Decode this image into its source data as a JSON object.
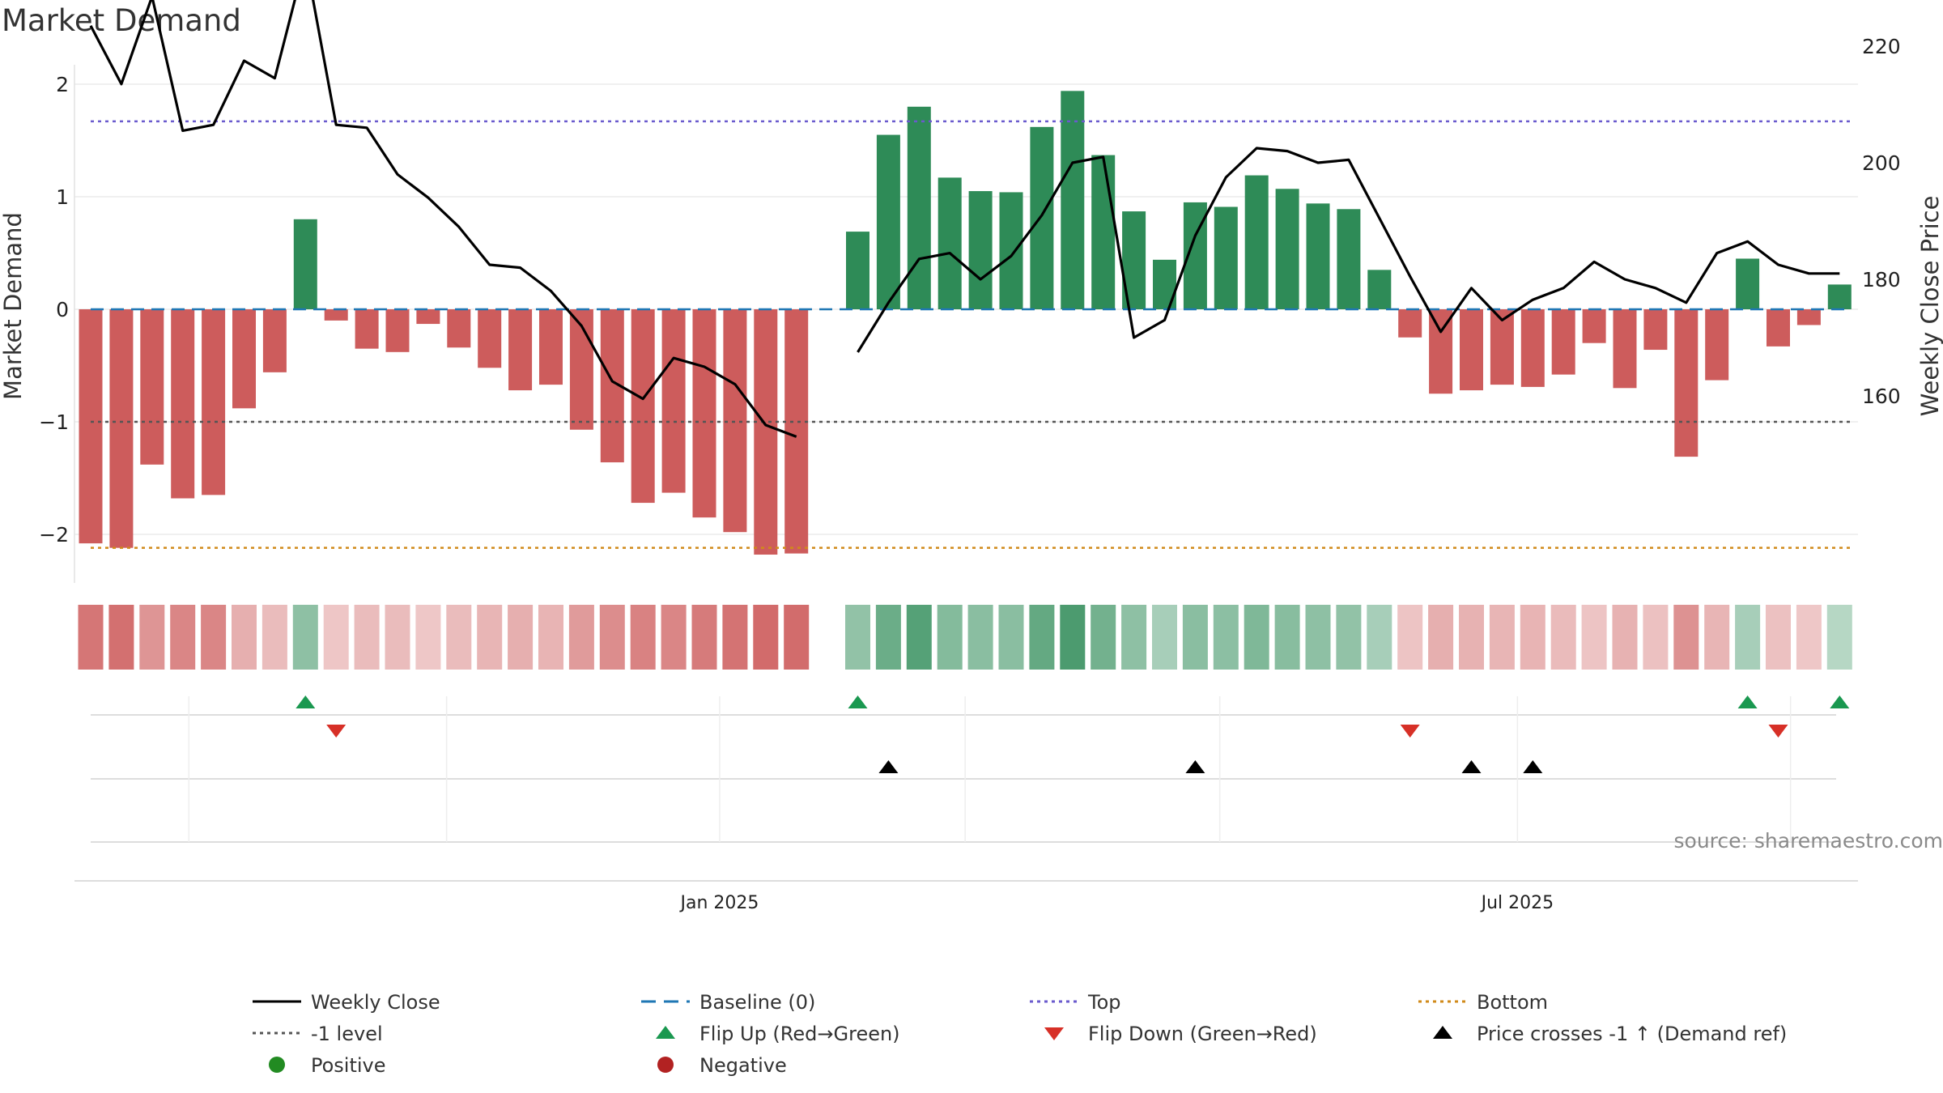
{
  "title": "Market Demand",
  "source": "source: sharemaestro.com",
  "colors": {
    "positive_bar": "#2e8b57",
    "negative_bar": "#cd5c5c",
    "price_line": "#000000",
    "baseline": "#1f77b4",
    "top": "#6a5acd",
    "bottom": "#d08a1a",
    "minus1": "#555555",
    "flip_up": "#1a9850",
    "flip_down": "#d73027",
    "cross": "#000000"
  },
  "chart_data": {
    "type": "bar",
    "ylabel_left": "Market Demand",
    "ylabel_right": "Weekly Close Price",
    "ylim_left": [
      -2.4,
      2.0
    ],
    "ylim_right": [
      152,
      232
    ],
    "left_ticks": [
      2,
      1,
      0,
      -1,
      -2
    ],
    "left_tick_labels": [
      "2",
      "1",
      "0",
      "−1",
      "−2"
    ],
    "right_ticks": [
      220,
      200,
      180,
      160
    ],
    "x_ticks": [
      {
        "label": "Jan 2025",
        "week": 20.5
      },
      {
        "label": "Jul 2025",
        "week": 46.5
      }
    ],
    "reference_lines": {
      "top": 1.67,
      "bottom": -2.12,
      "minus1": -1.0,
      "baseline": 0
    },
    "demand": [
      -2.08,
      -2.12,
      -1.38,
      -1.68,
      -1.65,
      -0.88,
      -0.56,
      0.8,
      -0.1,
      -0.35,
      -0.38,
      -0.13,
      -0.34,
      -0.52,
      -0.72,
      -0.67,
      -1.07,
      -1.36,
      -1.72,
      -1.63,
      -1.85,
      -1.98,
      -2.18,
      -2.17,
      null,
      0.69,
      1.55,
      1.8,
      1.17,
      1.05,
      1.04,
      1.62,
      1.94,
      1.37,
      0.87,
      0.44,
      0.95,
      0.91,
      1.19,
      1.07,
      0.94,
      0.89,
      0.35,
      -0.25,
      -0.75,
      -0.72,
      -0.67,
      -0.69,
      -0.58,
      -0.3,
      -0.7,
      -0.36,
      -1.31,
      -0.63,
      0.45,
      -0.33,
      -0.14,
      0.22
    ],
    "strength": [
      0.85,
      0.9,
      0.6,
      0.72,
      0.72,
      0.38,
      0.28,
      0.45,
      0.2,
      0.28,
      0.28,
      0.18,
      0.28,
      0.33,
      0.38,
      0.35,
      0.55,
      0.66,
      0.76,
      0.72,
      0.82,
      0.88,
      0.95,
      0.93,
      null,
      0.42,
      0.68,
      0.82,
      0.52,
      0.48,
      0.48,
      0.72,
      0.88,
      0.62,
      0.45,
      0.3,
      0.48,
      0.46,
      0.55,
      0.5,
      0.45,
      0.42,
      0.3,
      0.22,
      0.38,
      0.36,
      0.33,
      0.35,
      0.3,
      0.22,
      0.36,
      0.24,
      0.62,
      0.33,
      0.3,
      0.24,
      0.18,
      0.2
    ],
    "price": [
      223.5,
      213.5,
      228.5,
      205.5,
      206.5,
      217.5,
      214.5,
      235.0,
      206.5,
      206.0,
      198.0,
      194.0,
      189.0,
      182.5,
      182.0,
      178.0,
      172.0,
      162.5,
      159.5,
      166.5,
      165.0,
      162.0,
      155.0,
      153.0,
      null,
      167.5,
      176.0,
      183.5,
      184.5,
      180.0,
      184.0,
      191.0,
      200.0,
      201.0,
      170.0,
      173.0,
      187.5,
      197.5,
      202.5,
      202.0,
      200.0,
      200.5,
      190.5,
      180.5,
      171.0,
      178.5,
      173.0,
      176.5,
      178.5,
      183.0,
      180.0,
      178.5,
      176.0,
      184.5,
      186.5,
      182.5,
      181.0,
      181.0
    ],
    "flip_up_weeks": [
      7,
      25,
      54,
      57
    ],
    "flip_down_weeks": [
      8,
      43,
      55
    ],
    "price_cross_weeks": [
      26,
      36,
      45,
      47
    ],
    "legend": [
      {
        "label": "Weekly Close",
        "kind": "line-solid",
        "color": "#000000"
      },
      {
        "label": "Baseline (0)",
        "kind": "line-dash",
        "color": "#1f77b4"
      },
      {
        "label": "Top",
        "kind": "line-dot",
        "color": "#6a5acd"
      },
      {
        "label": "Bottom",
        "kind": "line-dot",
        "color": "#d08a1a"
      },
      {
        "label": "-1 level",
        "kind": "line-dot",
        "color": "#555555"
      },
      {
        "label": "Flip Up (Red→Green)",
        "kind": "tri-up",
        "color": "#1a9850"
      },
      {
        "label": "Flip Down (Green→Red)",
        "kind": "tri-down",
        "color": "#d73027"
      },
      {
        "label": "Price crosses -1 ↑ (Demand ref)",
        "kind": "tri-up",
        "color": "#000000"
      },
      {
        "label": "Positive",
        "kind": "dot",
        "color": "#228b22"
      },
      {
        "label": "Negative",
        "kind": "dot",
        "color": "#b22222"
      }
    ]
  }
}
